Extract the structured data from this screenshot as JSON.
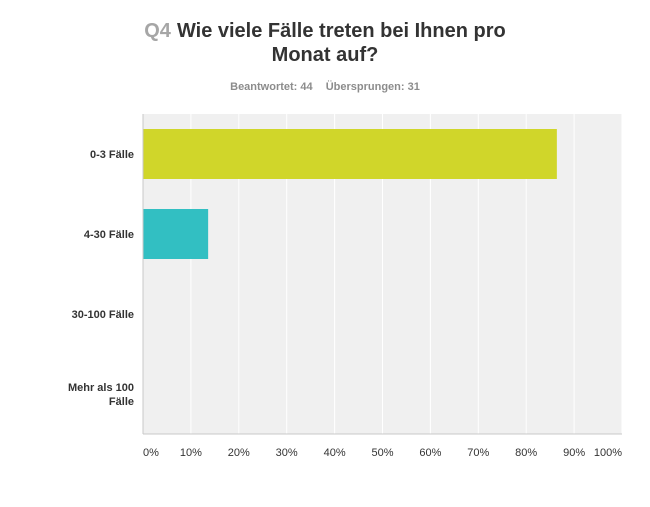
{
  "question": {
    "number": "Q4",
    "title_line1": "Wie viele Fälle treten bei Ihnen pro",
    "title_line2": "Monat auf?"
  },
  "stats": {
    "answered": "Beantwortet: 44",
    "skipped": "Übersprungen: 31"
  },
  "chart_data": {
    "type": "bar",
    "orientation": "horizontal",
    "categories": [
      [
        "0-3 Fälle"
      ],
      [
        "4-30 Fälle"
      ],
      [
        "30-100 Fälle"
      ],
      [
        "Mehr als 100",
        "Fälle"
      ]
    ],
    "values": [
      86.4,
      13.6,
      0,
      0
    ],
    "colors": [
      "#d0d62a",
      "#32bfc2",
      "#7c9ed8",
      "#dd7d62"
    ],
    "xlim": [
      0,
      100
    ],
    "x_ticks": [
      "0%",
      "10%",
      "20%",
      "30%",
      "40%",
      "50%",
      "60%",
      "70%",
      "80%",
      "90%",
      "100%"
    ],
    "grid": true,
    "background": "#f0f0f0"
  }
}
